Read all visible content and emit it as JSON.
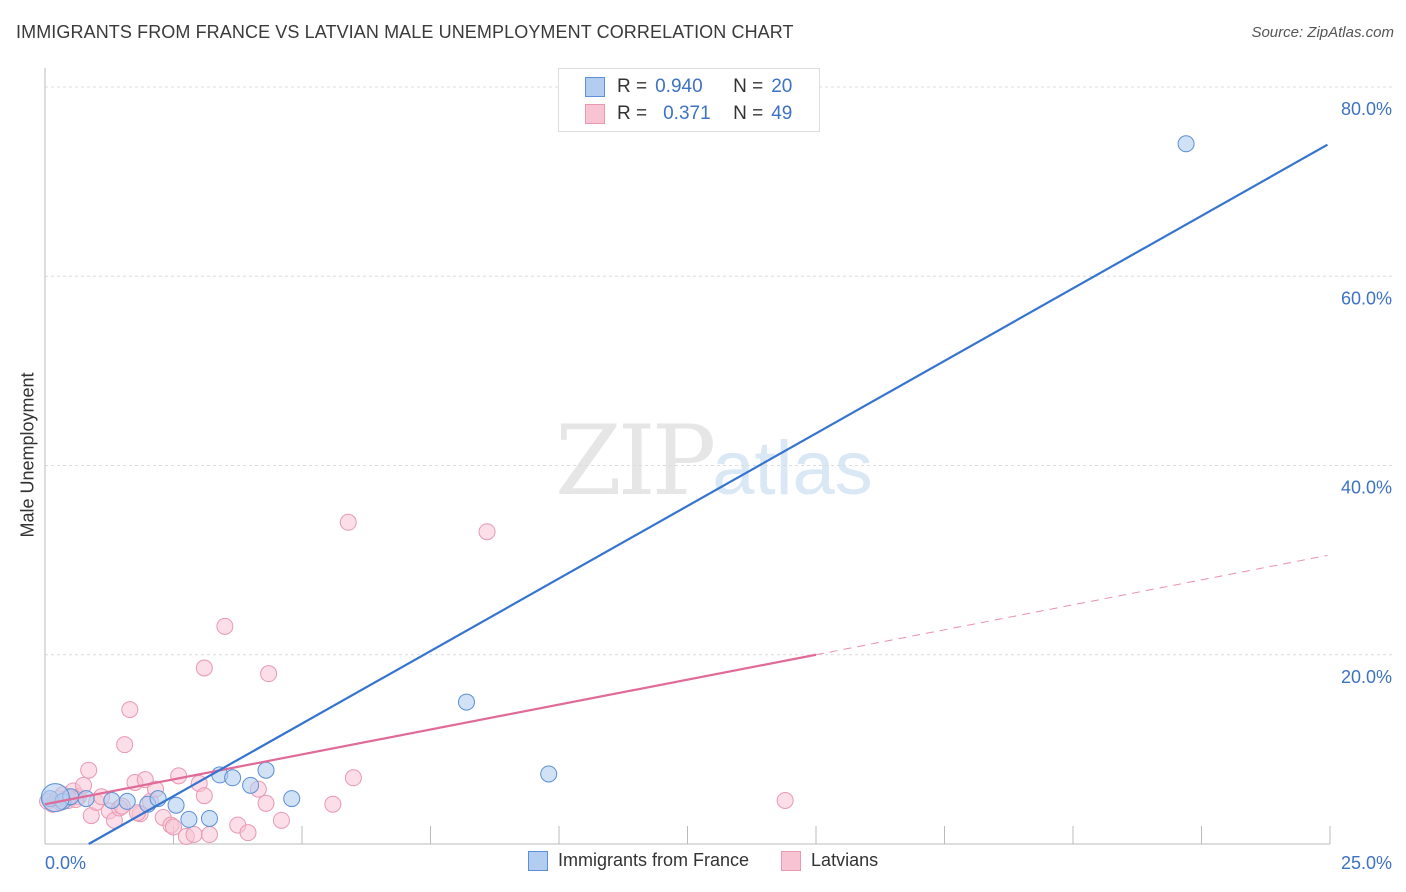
{
  "title": "IMMIGRANTS FROM FRANCE VS LATVIAN MALE UNEMPLOYMENT CORRELATION CHART",
  "source": "Source: ZipAtlas.com",
  "watermark": {
    "zip": "ZIP",
    "atlas": "atlas"
  },
  "legend": {
    "r_label": "R =",
    "n_label": "N =",
    "series1": {
      "r": "0.940",
      "n": "20"
    },
    "series2": {
      "r": "0.371",
      "n": "49"
    }
  },
  "chart_data": {
    "type": "scatter",
    "title": "IMMIGRANTS FROM FRANCE VS LATVIAN MALE UNEMPLOYMENT CORRELATION CHART",
    "xlabel": "",
    "ylabel": "Male Unemployment",
    "xlim": [
      0,
      25
    ],
    "ylim": [
      0,
      80
    ],
    "x_tick_labels": [
      "0.0%",
      "25.0%"
    ],
    "y_ticks": [
      20,
      40,
      60,
      80
    ],
    "y_tick_labels": [
      "20.0%",
      "40.0%",
      "60.0%",
      "80.0%"
    ],
    "grid": true,
    "legend_position": "bottom",
    "series": [
      {
        "name": "Immigrants from France",
        "color": "#5b8fd6",
        "fill": "#b3cdf0",
        "line_color": "#3574cf",
        "r": 0.94,
        "n": 20,
        "trend": {
          "x": [
            0.85,
            24.95
          ],
          "y": [
            0.0,
            73.9
          ]
        },
        "x": [
          0.1,
          0.35,
          0.5,
          0.8,
          1.3,
          1.6,
          2.0,
          2.2,
          2.55,
          2.8,
          3.2,
          3.4,
          3.65,
          4.0,
          4.3,
          4.8,
          8.2,
          9.8,
          22.2,
          0.2
        ],
        "y": [
          4.8,
          4.5,
          5.0,
          4.8,
          4.6,
          4.5,
          4.2,
          4.8,
          4.1,
          2.6,
          2.7,
          7.3,
          7.0,
          6.2,
          7.8,
          4.8,
          15.0,
          7.4,
          74.0,
          4.9
        ]
      },
      {
        "name": "Latvians",
        "color": "#e899b2",
        "fill": "#f8c3d3",
        "line_color": "#e06a98",
        "r": 0.371,
        "n": 49,
        "trend_solid": {
          "x": [
            0.0,
            15.0
          ],
          "y": [
            4.2,
            20.0
          ]
        },
        "trend_dashed": {
          "x": [
            15.0,
            24.95
          ],
          "y": [
            20.0,
            30.5
          ]
        },
        "x": [
          0.05,
          0.15,
          0.25,
          0.35,
          0.45,
          0.55,
          0.65,
          0.75,
          0.85,
          0.9,
          1.0,
          1.1,
          1.25,
          1.35,
          1.45,
          1.55,
          1.65,
          1.75,
          1.85,
          1.95,
          2.05,
          2.15,
          2.3,
          2.45,
          2.6,
          2.75,
          2.9,
          3.0,
          3.1,
          3.2,
          3.5,
          3.75,
          3.95,
          4.15,
          4.35,
          4.6,
          5.6,
          5.9,
          6.0,
          8.6,
          14.4,
          0.3,
          0.6,
          1.5,
          1.8,
          2.5,
          3.1,
          4.3,
          0.45
        ],
        "y": [
          4.5,
          4.2,
          4.8,
          5.2,
          4.6,
          5.6,
          5.0,
          6.2,
          7.8,
          3.0,
          4.4,
          5.0,
          3.5,
          2.5,
          3.8,
          10.5,
          14.2,
          6.5,
          3.2,
          6.8,
          4.5,
          5.8,
          2.8,
          2.0,
          7.2,
          0.8,
          1.0,
          6.4,
          18.6,
          1.0,
          23.0,
          2.0,
          1.2,
          5.8,
          18.0,
          2.5,
          4.2,
          34.0,
          7.0,
          33.0,
          4.6,
          4.4,
          4.7,
          4.0,
          3.3,
          1.8,
          5.1,
          4.3,
          4.9
        ]
      }
    ]
  }
}
